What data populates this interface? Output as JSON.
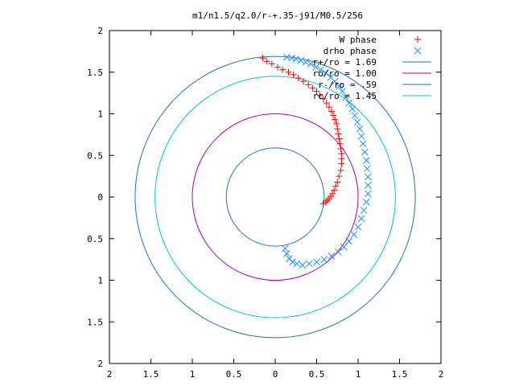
{
  "chart_data": {
    "type": "scatter",
    "title": "m1/n1.5/q2.0/r-+.35-j91/M0.5/256",
    "xlim": [
      -2,
      2
    ],
    "ylim": [
      -2,
      2
    ],
    "xticks": [
      "2",
      "1.5",
      "1",
      "0.5",
      "0",
      "0.5",
      "1",
      "1.5",
      "2"
    ],
    "yticks": [
      "2",
      "1.5",
      "1",
      "0.5",
      "0",
      "0.5",
      "1",
      "1.5",
      "2"
    ],
    "grid": false,
    "legend_position": "top-right",
    "series": [
      {
        "name": "W phase",
        "kind": "points",
        "marker": "plus",
        "color": "#ff0000",
        "x": [
          0.58,
          0.61,
          0.63,
          0.65,
          0.67,
          0.69,
          0.71,
          0.73,
          0.75,
          0.77,
          0.79,
          0.8,
          0.8,
          0.8,
          0.79,
          0.78,
          0.77,
          0.76,
          0.75,
          0.74,
          0.72,
          0.7,
          0.68,
          0.65,
          0.62,
          0.58,
          0.54,
          0.5,
          0.45,
          0.4,
          0.34,
          0.28,
          0.22,
          0.16,
          0.09,
          0.03,
          -0.04,
          -0.1,
          -0.15
        ],
        "y": [
          -0.08,
          -0.06,
          -0.04,
          -0.02,
          0.01,
          0.04,
          0.08,
          0.13,
          0.18,
          0.25,
          0.32,
          0.4,
          0.46,
          0.52,
          0.58,
          0.64,
          0.7,
          0.76,
          0.82,
          0.88,
          0.93,
          0.98,
          1.03,
          1.08,
          1.13,
          1.18,
          1.22,
          1.27,
          1.31,
          1.35,
          1.39,
          1.43,
          1.47,
          1.5,
          1.53,
          1.56,
          1.6,
          1.63,
          1.67
        ]
      },
      {
        "name": "drho phase",
        "kind": "points",
        "marker": "cross",
        "color": "#1e90ff",
        "x": [
          0.12,
          0.14,
          0.17,
          0.21,
          0.26,
          0.33,
          0.41,
          0.5,
          0.59,
          0.68,
          0.76,
          0.83,
          0.89,
          0.95,
          1.0,
          1.04,
          1.07,
          1.1,
          1.12,
          1.12,
          1.12,
          1.11,
          1.1,
          1.08,
          1.06,
          1.04,
          1.02,
          0.99,
          0.96,
          0.93,
          0.89,
          0.85,
          0.81,
          0.77,
          0.72,
          0.67,
          0.61,
          0.55,
          0.49,
          0.43,
          0.37,
          0.31,
          0.25,
          0.2,
          0.14
        ],
        "y": [
          -0.62,
          -0.68,
          -0.74,
          -0.78,
          -0.8,
          -0.82,
          -0.8,
          -0.78,
          -0.75,
          -0.71,
          -0.66,
          -0.6,
          -0.53,
          -0.45,
          -0.36,
          -0.26,
          -0.16,
          -0.06,
          0.04,
          0.14,
          0.24,
          0.34,
          0.44,
          0.54,
          0.64,
          0.73,
          0.82,
          0.9,
          0.98,
          1.06,
          1.13,
          1.2,
          1.27,
          1.33,
          1.39,
          1.44,
          1.49,
          1.53,
          1.56,
          1.6,
          1.62,
          1.64,
          1.66,
          1.67,
          1.68
        ]
      },
      {
        "name": "r+/ro = 1.69",
        "kind": "circle",
        "radius": 1.69,
        "color": "#1f77b4"
      },
      {
        "name": "ro/ro = 1.00",
        "kind": "circle",
        "radius": 1.0,
        "color": "#b000b0"
      },
      {
        "name": "r-/ro = .59",
        "kind": "circle",
        "radius": 0.59,
        "color": "#1f77b4"
      },
      {
        "name": "rc/ro = 1.45",
        "kind": "circle",
        "radius": 1.45,
        "color": "#00c8c8"
      }
    ]
  }
}
